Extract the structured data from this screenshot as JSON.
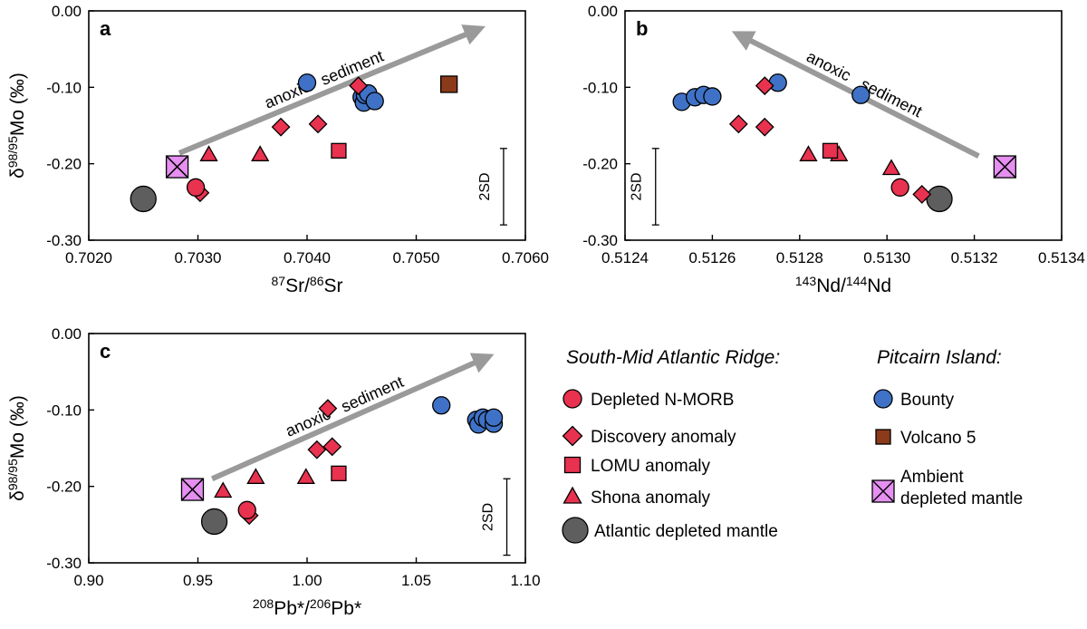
{
  "colors": {
    "smar": "#e8324f",
    "bounty": "#3f72c7",
    "volcano5": "#8b3a1a",
    "ambient": "#e58ff0",
    "atlantic": "#5e5e5e",
    "arrow": "#9a9a9a"
  },
  "legend": {
    "smar_header": "South-Mid Atlantic Ridge:",
    "pitcairn_header": "Pitcairn Island:",
    "items": {
      "depleted_nmorb": "Depleted N-MORB",
      "discovery": "Discovery anomaly",
      "lomu": "LOMU anomaly",
      "shona": "Shona anomaly",
      "atlantic": "Atlantic depleted mantle",
      "bounty": "Bounty",
      "volcano5": "Volcano 5",
      "ambient_line1": "Ambient",
      "ambient_line2": "depleted mantle"
    }
  },
  "chart_data": [
    {
      "type": "scatter",
      "panel": "a",
      "xlabel": {
        "sup1": "87",
        "t1": "Sr/",
        "sup2": "86",
        "t2": "Sr"
      },
      "ylabel": {
        "pre": "δ",
        "sup": "98/95",
        "post": "Mo (‰)"
      },
      "xlim": [
        0.702,
        0.706
      ],
      "ylim": [
        -0.3,
        0.0
      ],
      "xticks": [
        "0.7020",
        "0.7030",
        "0.7040",
        "0.7050",
        "0.7060"
      ],
      "yticks": [
        "0.00",
        "-0.10",
        "-0.20",
        "-0.30"
      ],
      "arrow_label": [
        "anoxic",
        "sediment"
      ],
      "arrow": {
        "from": [
          0.70283,
          -0.186
        ],
        "to": [
          0.70557,
          -0.024
        ]
      },
      "sd_label": "2SD",
      "sd_bar": {
        "x": 0.7058,
        "y_top": -0.18,
        "y_bottom": -0.28
      },
      "series": [
        {
          "name": "Depleted N-MORB",
          "values": [
            [
              0.70298,
              -0.231
            ]
          ]
        },
        {
          "name": "Discovery anomaly",
          "values": [
            [
              0.70302,
              -0.238
            ],
            [
              0.70376,
              -0.152
            ],
            [
              0.7041,
              -0.148
            ],
            [
              0.70447,
              -0.098
            ]
          ]
        },
        {
          "name": "LOMU anomaly",
          "values": [
            [
              0.70429,
              -0.183
            ]
          ]
        },
        {
          "name": "Shona anomaly",
          "values": [
            [
              0.7031,
              -0.188
            ],
            [
              0.70357,
              -0.188
            ]
          ]
        },
        {
          "name": "Atlantic depleted mantle",
          "values": [
            [
              0.7025,
              -0.246
            ]
          ]
        },
        {
          "name": "Bounty",
          "values": [
            [
              0.704,
              -0.094
            ],
            [
              0.7045,
              -0.113
            ],
            [
              0.70452,
              -0.12
            ],
            [
              0.70453,
              -0.11
            ],
            [
              0.70456,
              -0.108
            ],
            [
              0.70462,
              -0.118
            ]
          ]
        },
        {
          "name": "Volcano 5",
          "values": [
            [
              0.7053,
              -0.096
            ]
          ]
        },
        {
          "name": "Ambient depleted mantle",
          "values": [
            [
              0.70281,
              -0.204
            ]
          ]
        }
      ]
    },
    {
      "type": "scatter",
      "panel": "b",
      "xlabel": {
        "sup1": "143",
        "t1": "Nd/",
        "sup2": "144",
        "t2": "Nd"
      },
      "ylabel": null,
      "xlim": [
        0.5124,
        0.5134
      ],
      "ylim": [
        -0.3,
        0.0
      ],
      "xticks": [
        "0.5124",
        "0.5126",
        "0.5128",
        "0.5130",
        "0.5132",
        "0.5134"
      ],
      "yticks": [
        "0.00",
        "-0.10",
        "-0.20",
        "-0.30"
      ],
      "arrow_label": [
        "anoxic",
        "sediment"
      ],
      "arrow": {
        "from": [
          0.51321,
          -0.19
        ],
        "to": [
          0.51266,
          -0.031
        ]
      },
      "sd_label": "2SD",
      "sd_bar": {
        "x": 0.51247,
        "y_top": -0.18,
        "y_bottom": -0.28
      },
      "series": [
        {
          "name": "Depleted N-MORB",
          "values": [
            [
              0.51303,
              -0.231
            ]
          ]
        },
        {
          "name": "Discovery anomaly",
          "values": [
            [
              0.51266,
              -0.148
            ],
            [
              0.51272,
              -0.152
            ],
            [
              0.51272,
              -0.098
            ],
            [
              0.51308,
              -0.24
            ]
          ]
        },
        {
          "name": "LOMU anomaly",
          "values": [
            [
              0.51287,
              -0.183
            ]
          ]
        },
        {
          "name": "Shona anomaly",
          "values": [
            [
              0.51282,
              -0.188
            ],
            [
              0.51289,
              -0.188
            ],
            [
              0.51301,
              -0.206
            ]
          ]
        },
        {
          "name": "Atlantic depleted mantle",
          "values": [
            [
              0.51312,
              -0.246
            ]
          ]
        },
        {
          "name": "Bounty",
          "values": [
            [
              0.51253,
              -0.119
            ],
            [
              0.51256,
              -0.113
            ],
            [
              0.51258,
              -0.11
            ],
            [
              0.5126,
              -0.112
            ],
            [
              0.51275,
              -0.094
            ],
            [
              0.51294,
              -0.11
            ]
          ]
        },
        {
          "name": "Ambient depleted mantle",
          "values": [
            [
              0.51327,
              -0.204
            ]
          ]
        }
      ]
    },
    {
      "type": "scatter",
      "panel": "c",
      "xlabel": {
        "sup1": "208",
        "t1": "Pb*/",
        "sup2": "206",
        "t2": "Pb*"
      },
      "ylabel": {
        "pre": "δ",
        "sup": "98/95",
        "post": "Mo (‰)"
      },
      "xlim": [
        0.9,
        1.1
      ],
      "ylim": [
        -0.3,
        0.0
      ],
      "xticks": [
        "0.90",
        "0.95",
        "1.00",
        "1.05",
        "1.10"
      ],
      "yticks": [
        "0.00",
        "-0.10",
        "-0.20",
        "-0.30"
      ],
      "arrow_label": [
        "anoxic",
        "sediment"
      ],
      "arrow": {
        "from": [
          0.9565,
          -0.19
        ],
        "to": [
          1.0825,
          -0.031
        ]
      },
      "sd_label": "2SD",
      "sd_bar": {
        "x": 1.0915,
        "y_top": -0.19,
        "y_bottom": -0.29
      },
      "series": [
        {
          "name": "Depleted N-MORB",
          "values": [
            [
              0.9725,
              -0.231
            ]
          ]
        },
        {
          "name": "Discovery anomaly",
          "values": [
            [
              0.9735,
              -0.238
            ],
            [
              1.0045,
              -0.152
            ],
            [
              1.0095,
              -0.098
            ],
            [
              1.0115,
              -0.148
            ]
          ]
        },
        {
          "name": "LOMU anomaly",
          "values": [
            [
              1.0145,
              -0.183
            ]
          ]
        },
        {
          "name": "Shona anomaly",
          "values": [
            [
              0.9615,
              -0.206
            ],
            [
              0.9765,
              -0.188
            ],
            [
              0.9995,
              -0.188
            ]
          ]
        },
        {
          "name": "Atlantic depleted mantle",
          "values": [
            [
              0.9575,
              -0.246
            ]
          ]
        },
        {
          "name": "Bounty",
          "values": [
            [
              1.0615,
              -0.094
            ],
            [
              1.0775,
              -0.113
            ],
            [
              1.0785,
              -0.119
            ],
            [
              1.0805,
              -0.11
            ],
            [
              1.0825,
              -0.113
            ],
            [
              1.0855,
              -0.118
            ],
            [
              1.0855,
              -0.11
            ]
          ]
        },
        {
          "name": "Ambient depleted mantle",
          "values": [
            [
              0.9475,
              -0.204
            ]
          ]
        }
      ]
    }
  ]
}
